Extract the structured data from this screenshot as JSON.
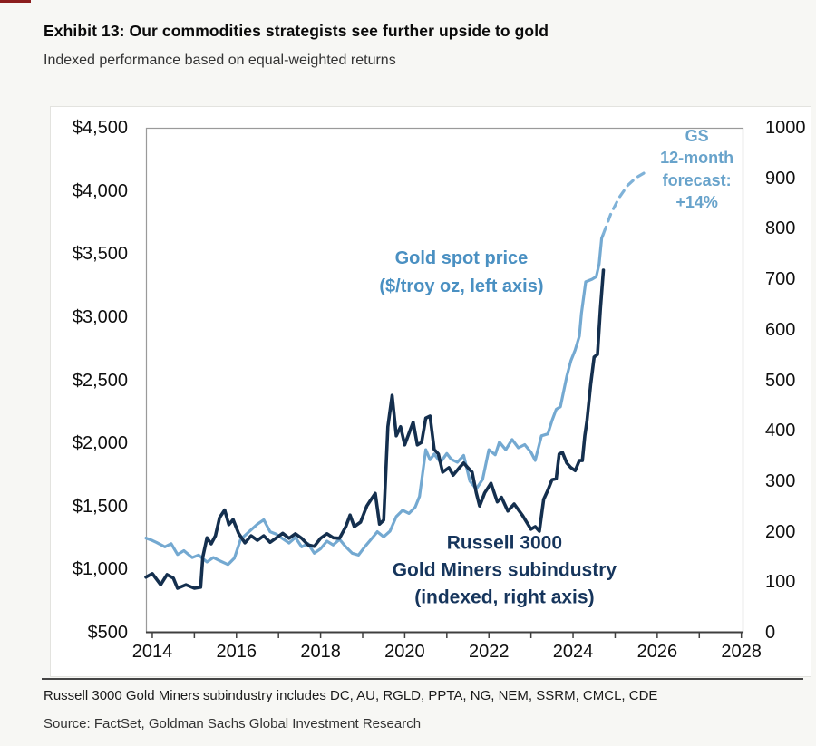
{
  "page": {
    "title": "Exhibit 13: Our commodities strategists see further upside to gold",
    "subtitle": "Indexed performance based on equal-weighted returns",
    "footnote": "Russell 3000 Gold Miners subindustry includes DC, AU, RGLD, PPTA, NG, NEM, SSRM, CMCL, CDE",
    "source": "Source: FactSet, Goldman Sachs Global Investment Research"
  },
  "colors": {
    "background": "#f7f7f4",
    "card": "#ffffff",
    "red_mark": "#8b1d1d",
    "title_text": "#0a0a0a",
    "subtitle_text": "#333333",
    "separator": "#454545",
    "footnote_text": "#1a1a1a",
    "source_text": "#333333",
    "frame": "#9a9a9a",
    "axis_line": "#3f3f3f",
    "axis_text": "#0f0f0f",
    "gold_line": "#74a9d1",
    "gold_dashed": "#7fb2d8",
    "gold_text": "#4a90c2",
    "forecast_text": "#68a3cb",
    "navy_line": "#142f4e",
    "navy_text": "#16355c"
  },
  "chart_data": {
    "type": "line",
    "title": "Exhibit 13: Our commodities strategists see further upside to gold",
    "subtitle": "Indexed performance based on equal-weighted returns",
    "grid": false,
    "legend_position": "inline-annotations",
    "x_axis": {
      "min": 2013.85,
      "max": 2028.05,
      "labeled_ticks": [
        {
          "label": "2014",
          "year": 2014
        },
        {
          "label": "2016",
          "year": 2016
        },
        {
          "label": "2018",
          "year": 2018
        },
        {
          "label": "2020",
          "year": 2020
        },
        {
          "label": "2022",
          "year": 2022
        },
        {
          "label": "2024",
          "year": 2024
        },
        {
          "label": "2026",
          "year": 2026
        },
        {
          "label": "2028",
          "year": 2028
        }
      ],
      "minor_tick_years": [
        2014,
        2015,
        2016,
        2017,
        2018,
        2019,
        2020,
        2021,
        2022,
        2023,
        2024,
        2025,
        2026,
        2027,
        2028
      ]
    },
    "left_axis": {
      "min": 500,
      "max": 4500,
      "step": 500,
      "ticks": [
        {
          "label": "$4,500",
          "value": 4500
        },
        {
          "label": "$4,000",
          "value": 4000
        },
        {
          "label": "$3,500",
          "value": 3500
        },
        {
          "label": "$3,000",
          "value": 3000
        },
        {
          "label": "$2,500",
          "value": 2500
        },
        {
          "label": "$2,000",
          "value": 2000
        },
        {
          "label": "$1,500",
          "value": 1500
        },
        {
          "label": "$1,000",
          "value": 1000
        },
        {
          "label": "$500",
          "value": 500
        }
      ]
    },
    "right_axis": {
      "min": 0,
      "max": 1000,
      "step": 100,
      "ticks": [
        {
          "label": "1000",
          "value": 1000
        },
        {
          "label": "900",
          "value": 900
        },
        {
          "label": "800",
          "value": 800
        },
        {
          "label": "700",
          "value": 700
        },
        {
          "label": "600",
          "value": 600
        },
        {
          "label": "500",
          "value": 500
        },
        {
          "label": "400",
          "value": 400
        },
        {
          "label": "300",
          "value": 300
        },
        {
          "label": "200",
          "value": 200
        },
        {
          "label": "100",
          "value": 100
        },
        {
          "label": "0",
          "value": 0
        }
      ]
    },
    "series": [
      {
        "name": "Gold spot price ($/troy oz, left axis)",
        "axis": "left",
        "style": "solid",
        "color_key": "gold_line",
        "width": 3.2,
        "points": [
          [
            2013.85,
            1250
          ],
          [
            2014.0,
            1230
          ],
          [
            2014.1,
            1215
          ],
          [
            2014.3,
            1180
          ],
          [
            2014.45,
            1205
          ],
          [
            2014.6,
            1120
          ],
          [
            2014.75,
            1150
          ],
          [
            2014.95,
            1095
          ],
          [
            2015.1,
            1115
          ],
          [
            2015.3,
            1060
          ],
          [
            2015.45,
            1095
          ],
          [
            2015.6,
            1070
          ],
          [
            2015.8,
            1040
          ],
          [
            2015.95,
            1090
          ],
          [
            2016.1,
            1240
          ],
          [
            2016.3,
            1300
          ],
          [
            2016.5,
            1360
          ],
          [
            2016.65,
            1395
          ],
          [
            2016.8,
            1300
          ],
          [
            2016.95,
            1280
          ],
          [
            2017.1,
            1245
          ],
          [
            2017.25,
            1210
          ],
          [
            2017.4,
            1255
          ],
          [
            2017.55,
            1180
          ],
          [
            2017.7,
            1205
          ],
          [
            2017.85,
            1130
          ],
          [
            2018.0,
            1165
          ],
          [
            2018.15,
            1225
          ],
          [
            2018.3,
            1195
          ],
          [
            2018.45,
            1240
          ],
          [
            2018.6,
            1180
          ],
          [
            2018.75,
            1130
          ],
          [
            2018.9,
            1115
          ],
          [
            2019.05,
            1180
          ],
          [
            2019.2,
            1240
          ],
          [
            2019.35,
            1300
          ],
          [
            2019.5,
            1260
          ],
          [
            2019.65,
            1305
          ],
          [
            2019.8,
            1420
          ],
          [
            2019.95,
            1470
          ],
          [
            2020.1,
            1445
          ],
          [
            2020.25,
            1495
          ],
          [
            2020.35,
            1580
          ],
          [
            2020.5,
            1950
          ],
          [
            2020.6,
            1870
          ],
          [
            2020.7,
            1915
          ],
          [
            2020.85,
            1850
          ],
          [
            2021.0,
            1920
          ],
          [
            2021.1,
            1875
          ],
          [
            2021.25,
            1850
          ],
          [
            2021.4,
            1905
          ],
          [
            2021.55,
            1700
          ],
          [
            2021.7,
            1640
          ],
          [
            2021.85,
            1715
          ],
          [
            2022.0,
            1950
          ],
          [
            2022.15,
            1910
          ],
          [
            2022.25,
            2010
          ],
          [
            2022.4,
            1950
          ],
          [
            2022.55,
            2030
          ],
          [
            2022.7,
            1965
          ],
          [
            2022.85,
            1990
          ],
          [
            2023.0,
            1930
          ],
          [
            2023.1,
            1865
          ],
          [
            2023.25,
            2060
          ],
          [
            2023.4,
            2075
          ],
          [
            2023.5,
            2180
          ],
          [
            2023.6,
            2270
          ],
          [
            2023.7,
            2290
          ],
          [
            2023.85,
            2530
          ],
          [
            2023.95,
            2655
          ],
          [
            2024.05,
            2740
          ],
          [
            2024.15,
            2850
          ],
          [
            2024.2,
            3030
          ],
          [
            2024.3,
            3280
          ],
          [
            2024.45,
            3300
          ],
          [
            2024.55,
            3320
          ],
          [
            2024.62,
            3420
          ],
          [
            2024.68,
            3625
          ],
          [
            2024.72,
            3660
          ]
        ]
      },
      {
        "name": "Russell 3000 Gold Miners subindustry (indexed, right axis)",
        "axis": "right",
        "style": "solid",
        "color_key": "navy_line",
        "width": 3.6,
        "points": [
          [
            2013.85,
            110
          ],
          [
            2014.0,
            117
          ],
          [
            2014.2,
            95
          ],
          [
            2014.35,
            115
          ],
          [
            2014.5,
            108
          ],
          [
            2014.6,
            88
          ],
          [
            2014.8,
            95
          ],
          [
            2015.0,
            88
          ],
          [
            2015.15,
            90
          ],
          [
            2015.2,
            150
          ],
          [
            2015.3,
            188
          ],
          [
            2015.4,
            176
          ],
          [
            2015.5,
            192
          ],
          [
            2015.6,
            228
          ],
          [
            2015.72,
            243
          ],
          [
            2015.82,
            214
          ],
          [
            2015.92,
            224
          ],
          [
            2016.05,
            197
          ],
          [
            2016.2,
            178
          ],
          [
            2016.35,
            192
          ],
          [
            2016.5,
            183
          ],
          [
            2016.65,
            192
          ],
          [
            2016.8,
            179
          ],
          [
            2016.95,
            188
          ],
          [
            2017.1,
            197
          ],
          [
            2017.25,
            187
          ],
          [
            2017.4,
            196
          ],
          [
            2017.55,
            187
          ],
          [
            2017.7,
            174
          ],
          [
            2017.85,
            171
          ],
          [
            2018.0,
            187
          ],
          [
            2018.15,
            196
          ],
          [
            2018.3,
            188
          ],
          [
            2018.45,
            187
          ],
          [
            2018.6,
            210
          ],
          [
            2018.7,
            233
          ],
          [
            2018.8,
            210
          ],
          [
            2018.95,
            219
          ],
          [
            2019.1,
            251
          ],
          [
            2019.2,
            264
          ],
          [
            2019.3,
            276
          ],
          [
            2019.4,
            215
          ],
          [
            2019.5,
            223
          ],
          [
            2019.6,
            408
          ],
          [
            2019.7,
            470
          ],
          [
            2019.8,
            390
          ],
          [
            2019.9,
            408
          ],
          [
            2020.0,
            372
          ],
          [
            2020.1,
            395
          ],
          [
            2020.2,
            417
          ],
          [
            2020.3,
            372
          ],
          [
            2020.4,
            377
          ],
          [
            2020.5,
            425
          ],
          [
            2020.6,
            429
          ],
          [
            2020.7,
            363
          ],
          [
            2020.8,
            354
          ],
          [
            2020.9,
            318
          ],
          [
            2021.05,
            327
          ],
          [
            2021.15,
            312
          ],
          [
            2021.3,
            327
          ],
          [
            2021.4,
            336
          ],
          [
            2021.5,
            327
          ],
          [
            2021.6,
            318
          ],
          [
            2021.7,
            277
          ],
          [
            2021.78,
            251
          ],
          [
            2021.9,
            277
          ],
          [
            2022.05,
            296
          ],
          [
            2022.2,
            259
          ],
          [
            2022.3,
            268
          ],
          [
            2022.45,
            241
          ],
          [
            2022.6,
            255
          ],
          [
            2022.8,
            232
          ],
          [
            2023.0,
            205
          ],
          [
            2023.1,
            210
          ],
          [
            2023.2,
            201
          ],
          [
            2023.3,
            264
          ],
          [
            2023.4,
            282
          ],
          [
            2023.5,
            303
          ],
          [
            2023.6,
            305
          ],
          [
            2023.67,
            354
          ],
          [
            2023.75,
            357
          ],
          [
            2023.85,
            336
          ],
          [
            2023.95,
            327
          ],
          [
            2024.05,
            321
          ],
          [
            2024.15,
            341
          ],
          [
            2024.22,
            341
          ],
          [
            2024.28,
            390
          ],
          [
            2024.33,
            420
          ],
          [
            2024.42,
            492
          ],
          [
            2024.5,
            546
          ],
          [
            2024.58,
            551
          ],
          [
            2024.65,
            641
          ],
          [
            2024.72,
            718
          ]
        ]
      },
      {
        "name": "GS 12-month forecast",
        "axis": "left",
        "style": "dashed",
        "color_key": "gold_dashed",
        "width": 3.2,
        "points": [
          [
            2024.72,
            3660
          ],
          [
            2024.9,
            3820
          ],
          [
            2025.1,
            3950
          ],
          [
            2025.3,
            4045
          ],
          [
            2025.5,
            4105
          ],
          [
            2025.68,
            4140
          ]
        ]
      }
    ],
    "annotations": [
      {
        "id": "gold-series-label",
        "text": "Gold spot price\n($/troy oz, left axis)",
        "color_key": "gold_text",
        "fx": 0.528,
        "fy": 0.288,
        "font_size": 20,
        "line_height": 1.55
      },
      {
        "id": "russell-series-label",
        "text": "Russell 3000\nGold Miners subindustry\n(indexed, right axis)",
        "color_key": "navy_text",
        "fx": 0.6,
        "fy": 0.876,
        "font_size": 21,
        "line_height": 1.42
      },
      {
        "id": "forecast-label",
        "text": "GS\n12-month\nforecast:\n+14%",
        "color_key": "forecast_text",
        "fx": 0.922,
        "fy": 0.082,
        "font_size": 18,
        "line_height": 1.36
      }
    ]
  }
}
